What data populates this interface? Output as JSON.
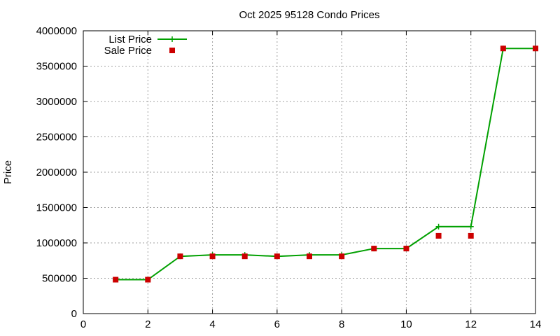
{
  "chart_data": {
    "type": "line",
    "title": "Oct 2025 95128 Condo Prices",
    "xlabel": "",
    "ylabel": "Price",
    "xlim": [
      0,
      14
    ],
    "ylim": [
      0,
      4000000
    ],
    "x_ticks": [
      0,
      2,
      4,
      6,
      8,
      10,
      12,
      14
    ],
    "y_ticks": [
      0,
      500000,
      1000000,
      1500000,
      2000000,
      2500000,
      3000000,
      3500000,
      4000000
    ],
    "grid": true,
    "legend_position": "top-left",
    "series": [
      {
        "name": "List Price",
        "style": "line-with-plus-markers",
        "color": "#00a000",
        "x": [
          1,
          2,
          3,
          4,
          5,
          6,
          7,
          8,
          9,
          10,
          11,
          12,
          13,
          14
        ],
        "values": [
          480000,
          480000,
          810000,
          830000,
          830000,
          810000,
          830000,
          830000,
          920000,
          920000,
          1230000,
          1230000,
          3750000,
          3750000
        ]
      },
      {
        "name": "Sale Price",
        "style": "square-markers",
        "color": "#cc0000",
        "x": [
          1,
          2,
          3,
          4,
          5,
          6,
          7,
          8,
          9,
          10,
          11,
          12,
          13,
          14
        ],
        "values": [
          480000,
          480000,
          810000,
          810000,
          810000,
          810000,
          810000,
          810000,
          920000,
          920000,
          1100000,
          1100000,
          3750000,
          3750000
        ]
      }
    ]
  }
}
